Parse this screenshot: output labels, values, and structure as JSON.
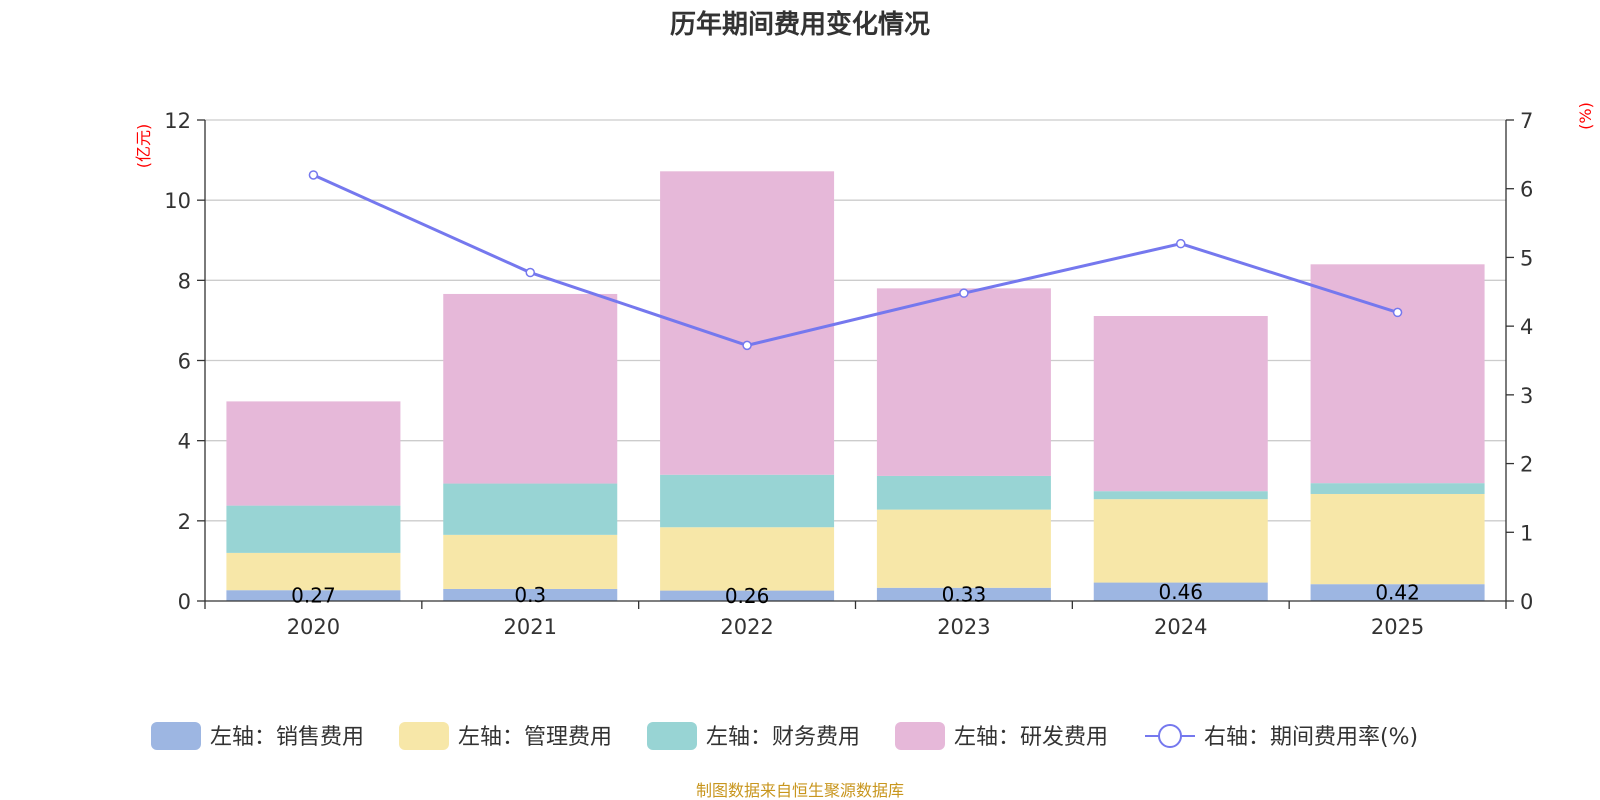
{
  "title": "历年期间费用变化情况",
  "source": "制图数据来自恒生聚源数据库",
  "colors": {
    "sales": "#9db6e2",
    "admin": "#f7e7a8",
    "finance": "#98d4d4",
    "rnd": "#e6b8d9",
    "rate": "#7578ee",
    "unit": "#ff0000",
    "source": "#c8961e"
  },
  "chart_data": {
    "type": "bar",
    "stacked": true,
    "categories": [
      "2020",
      "2021",
      "2022",
      "2023",
      "2024",
      "2025"
    ],
    "series": [
      {
        "key": "sales",
        "name": "左轴：销售费用",
        "axis": "left",
        "values": [
          0.27,
          0.3,
          0.26,
          0.33,
          0.46,
          0.42
        ],
        "labels": [
          "0.27",
          "0.3",
          "0.26",
          "0.33",
          "0.46",
          "0.42"
        ]
      },
      {
        "key": "admin",
        "name": "左轴：管理费用",
        "axis": "left",
        "values": [
          0.93,
          1.35,
          1.58,
          1.95,
          2.08,
          2.25
        ]
      },
      {
        "key": "finance",
        "name": "左轴：财务费用",
        "axis": "left",
        "values": [
          1.18,
          1.28,
          1.31,
          0.84,
          0.2,
          0.27
        ]
      },
      {
        "key": "rnd",
        "name": "左轴：研发费用",
        "axis": "left",
        "values": [
          2.6,
          4.73,
          7.57,
          4.68,
          4.37,
          5.46
        ]
      },
      {
        "key": "rate",
        "name": "右轴：期间费用率(%)",
        "axis": "right",
        "type": "line",
        "values": [
          6.2,
          4.78,
          3.72,
          4.48,
          5.2,
          4.2
        ]
      }
    ],
    "left_axis": {
      "unit": "(亿元)",
      "min": 0,
      "max": 12,
      "ticks": [
        0,
        2,
        4,
        6,
        8,
        10,
        12
      ]
    },
    "right_axis": {
      "unit": "(%)",
      "min": 0,
      "max": 7,
      "ticks": [
        0,
        1,
        2,
        3,
        4,
        5,
        6,
        7
      ]
    },
    "grid": true,
    "legend_position": "bottom"
  }
}
